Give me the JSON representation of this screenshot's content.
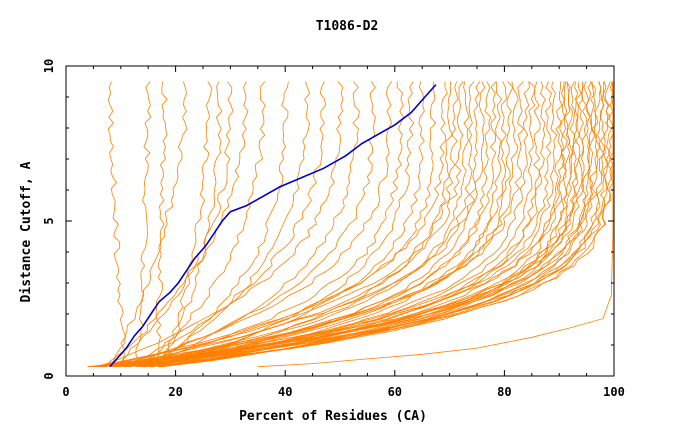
{
  "chart_data": {
    "type": "line",
    "title": "T1086-D2",
    "xlabel": "Percent of Residues (CA)",
    "ylabel": "Distance Cutoff, A",
    "xlim": [
      0,
      100
    ],
    "ylim": [
      0,
      10
    ],
    "x_ticks": [
      "0",
      "20",
      "40",
      "60",
      "80",
      "100"
    ],
    "y_ticks": [
      "0",
      "5",
      "10"
    ],
    "grid": false,
    "colors": {
      "highlight": "#0000cc",
      "others": "#ff8000",
      "axes": "#000000"
    },
    "highlight_series": {
      "points": [
        [
          8,
          0.3
        ],
        [
          9.5,
          0.6
        ],
        [
          11,
          0.9
        ],
        [
          12.5,
          1.3
        ],
        [
          14,
          1.6
        ],
        [
          15.5,
          2.0
        ],
        [
          17,
          2.4
        ],
        [
          19,
          2.7
        ],
        [
          20.5,
          3.0
        ],
        [
          22,
          3.4
        ],
        [
          23.5,
          3.8
        ],
        [
          25.5,
          4.2
        ],
        [
          27,
          4.6
        ],
        [
          28.5,
          5.0
        ],
        [
          30,
          5.3
        ],
        [
          33,
          5.5
        ],
        [
          36,
          5.8
        ],
        [
          39,
          6.1
        ],
        [
          43,
          6.4
        ],
        [
          47,
          6.7
        ],
        [
          51,
          7.1
        ],
        [
          54,
          7.5
        ],
        [
          57,
          7.8
        ],
        [
          60,
          8.1
        ],
        [
          63,
          8.5
        ],
        [
          65.5,
          9.0
        ],
        [
          67.5,
          9.4
        ]
      ]
    },
    "orange_end_x": [
      8,
      15,
      18,
      22,
      26,
      28,
      30,
      33,
      36,
      40,
      44,
      47,
      50,
      53,
      56,
      59,
      61,
      63,
      65,
      67,
      69,
      70,
      71,
      72,
      73,
      74,
      75,
      76,
      77,
      78,
      79,
      80,
      81,
      82,
      83,
      84,
      85,
      86,
      87,
      88,
      89,
      90,
      90.5,
      91,
      91.5,
      92,
      92.5,
      93,
      93.5,
      94,
      94.5,
      95,
      95.5,
      96,
      96.5,
      97,
      97.5,
      98,
      98.5,
      99,
      99.5,
      99.8
    ],
    "outlier_series": {
      "points": [
        [
          35,
          0.3
        ],
        [
          45,
          0.4
        ],
        [
          55,
          0.55
        ],
        [
          65,
          0.7
        ],
        [
          75,
          0.9
        ],
        [
          85,
          1.25
        ],
        [
          92,
          1.55
        ],
        [
          98,
          1.85
        ],
        [
          99.5,
          2.6
        ],
        [
          99.8,
          4.5
        ],
        [
          99.8,
          9.5
        ]
      ]
    }
  }
}
